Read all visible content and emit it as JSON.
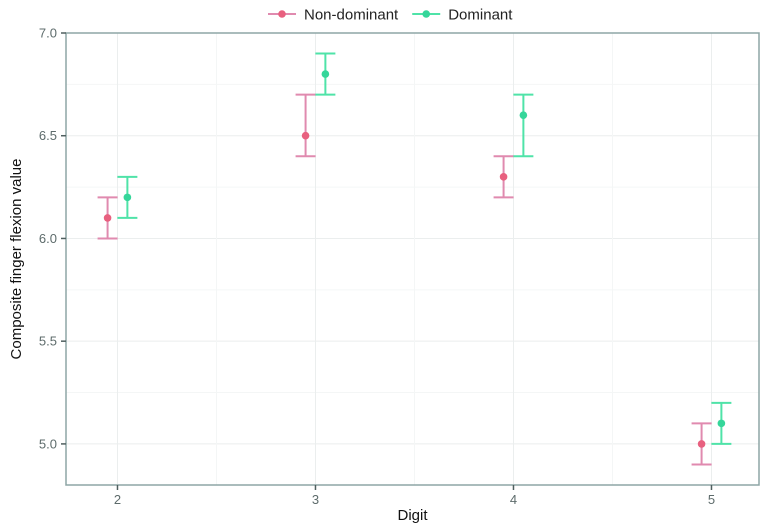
{
  "chart_data": {
    "type": "scatter",
    "title": "",
    "xlabel": "Digit",
    "ylabel": "Composite finger flexion value",
    "categories": [
      "2",
      "3",
      "4",
      "5"
    ],
    "x": [
      2,
      3,
      4,
      5
    ],
    "xlim": [
      1.74,
      5.24
    ],
    "ylim": [
      4.8,
      7.0
    ],
    "yticks": [
      "5.0",
      "5.5",
      "6.0",
      "6.5",
      "7.0"
    ],
    "ytick_values": [
      5.0,
      5.5,
      6.0,
      6.5,
      7.0
    ],
    "grid": true,
    "legend_position": "top",
    "series": [
      {
        "name": "Non-dominant",
        "color": "#e8607f",
        "bar_color": "#e08aaf",
        "values": [
          6.1,
          6.5,
          6.3,
          5.0
        ],
        "lower": [
          6.0,
          6.4,
          6.2,
          4.9
        ],
        "upper": [
          6.2,
          6.7,
          6.4,
          5.1
        ]
      },
      {
        "name": "Dominant",
        "color": "#35d69a",
        "bar_color": "#4fe3a8",
        "values": [
          6.2,
          6.8,
          6.6,
          5.1
        ],
        "lower": [
          6.1,
          6.7,
          6.4,
          5.0
        ],
        "upper": [
          6.3,
          6.9,
          6.7,
          5.2
        ]
      }
    ]
  }
}
